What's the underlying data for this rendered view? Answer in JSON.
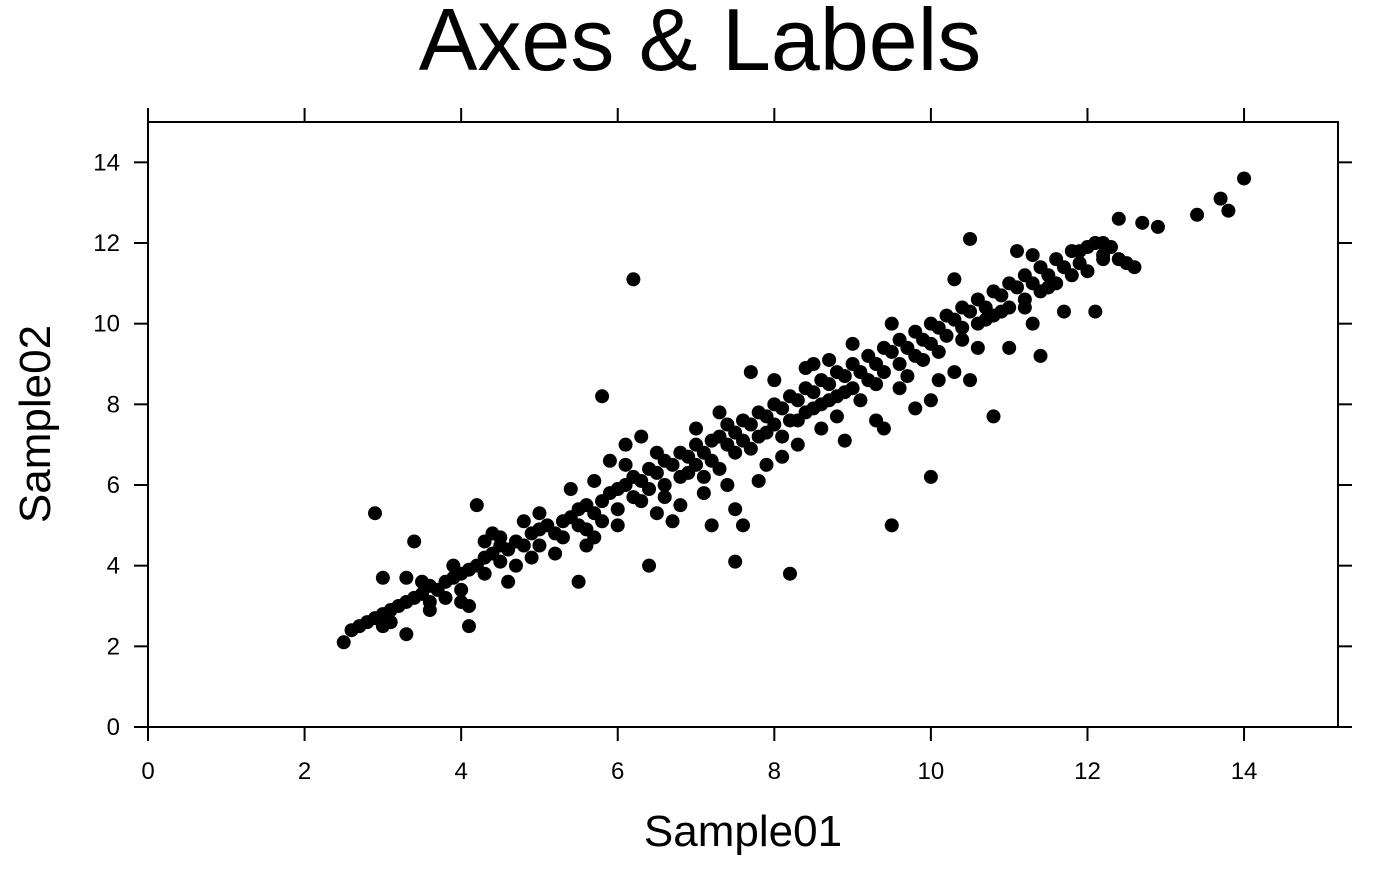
{
  "chart_data": {
    "type": "scatter",
    "title": "Axes & Labels",
    "xlabel": "Sample01",
    "ylabel": "Sample02",
    "xlim": [
      0,
      15.2
    ],
    "ylim": [
      0,
      15
    ],
    "x_ticks": [
      "0",
      "2",
      "4",
      "6",
      "8",
      "10",
      "12",
      "14"
    ],
    "y_ticks": [
      "0",
      "2",
      "4",
      "6",
      "8",
      "10",
      "12",
      "14"
    ],
    "grid": false,
    "legend": "none",
    "marker_color": "#000000",
    "series": [
      {
        "points": [
          [
            2.5,
            2.1
          ],
          [
            2.6,
            2.4
          ],
          [
            2.7,
            2.5
          ],
          [
            2.8,
            2.6
          ],
          [
            2.9,
            2.7
          ],
          [
            3.0,
            2.5
          ],
          [
            3.0,
            2.8
          ],
          [
            3.1,
            2.9
          ],
          [
            3.1,
            2.6
          ],
          [
            3.2,
            3.0
          ],
          [
            3.3,
            3.1
          ],
          [
            3.3,
            2.3
          ],
          [
            3.4,
            3.2
          ],
          [
            3.5,
            3.3
          ],
          [
            3.6,
            3.5
          ],
          [
            3.6,
            3.1
          ],
          [
            3.7,
            3.4
          ],
          [
            3.8,
            3.6
          ],
          [
            3.8,
            3.2
          ],
          [
            3.9,
            3.7
          ],
          [
            4.0,
            3.8
          ],
          [
            4.0,
            3.4
          ],
          [
            4.1,
            3.9
          ],
          [
            4.1,
            3.0
          ],
          [
            4.2,
            4.0
          ],
          [
            4.3,
            4.2
          ],
          [
            4.3,
            3.8
          ],
          [
            4.4,
            4.3
          ],
          [
            4.5,
            4.1
          ],
          [
            4.5,
            4.5
          ],
          [
            4.6,
            4.4
          ],
          [
            4.7,
            4.6
          ],
          [
            4.7,
            4.0
          ],
          [
            4.8,
            4.5
          ],
          [
            4.9,
            4.8
          ],
          [
            4.9,
            4.2
          ],
          [
            5.0,
            4.9
          ],
          [
            5.0,
            4.5
          ],
          [
            5.1,
            5.0
          ],
          [
            5.2,
            4.8
          ],
          [
            5.3,
            5.1
          ],
          [
            5.3,
            4.7
          ],
          [
            5.4,
            5.2
          ],
          [
            5.5,
            5.0
          ],
          [
            5.5,
            5.4
          ],
          [
            5.6,
            5.5
          ],
          [
            5.6,
            4.9
          ],
          [
            5.7,
            5.3
          ],
          [
            5.8,
            5.6
          ],
          [
            5.8,
            5.1
          ],
          [
            5.9,
            5.8
          ],
          [
            6.0,
            5.9
          ],
          [
            6.0,
            5.4
          ],
          [
            6.1,
            6.0
          ],
          [
            6.2,
            5.7
          ],
          [
            6.2,
            6.2
          ],
          [
            6.3,
            6.1
          ],
          [
            6.4,
            5.9
          ],
          [
            6.4,
            6.4
          ],
          [
            6.5,
            6.3
          ],
          [
            6.6,
            6.0
          ],
          [
            6.6,
            6.6
          ],
          [
            6.7,
            6.5
          ],
          [
            6.8,
            6.2
          ],
          [
            6.8,
            6.8
          ],
          [
            6.9,
            6.7
          ],
          [
            7.0,
            6.5
          ],
          [
            7.0,
            7.0
          ],
          [
            7.1,
            6.8
          ],
          [
            7.2,
            7.1
          ],
          [
            7.2,
            6.6
          ],
          [
            7.3,
            7.2
          ],
          [
            7.4,
            7.0
          ],
          [
            7.4,
            7.5
          ],
          [
            7.5,
            7.3
          ],
          [
            7.6,
            7.1
          ],
          [
            7.6,
            7.6
          ],
          [
            7.7,
            7.5
          ],
          [
            7.8,
            7.2
          ],
          [
            7.8,
            7.8
          ],
          [
            7.9,
            7.7
          ],
          [
            8.0,
            7.5
          ],
          [
            8.0,
            8.0
          ],
          [
            8.1,
            7.9
          ],
          [
            8.2,
            7.6
          ],
          [
            8.2,
            8.2
          ],
          [
            8.3,
            8.1
          ],
          [
            8.4,
            7.8
          ],
          [
            8.4,
            8.4
          ],
          [
            8.5,
            8.3
          ],
          [
            8.6,
            8.0
          ],
          [
            8.6,
            8.6
          ],
          [
            8.7,
            8.5
          ],
          [
            8.8,
            8.2
          ],
          [
            8.8,
            8.8
          ],
          [
            8.9,
            8.7
          ],
          [
            9.0,
            8.4
          ],
          [
            9.0,
            9.0
          ],
          [
            9.1,
            8.8
          ],
          [
            9.2,
            8.6
          ],
          [
            9.2,
            9.2
          ],
          [
            9.3,
            9.0
          ],
          [
            9.4,
            8.8
          ],
          [
            9.4,
            9.4
          ],
          [
            9.5,
            9.3
          ],
          [
            9.6,
            9.0
          ],
          [
            9.6,
            9.6
          ],
          [
            9.7,
            9.4
          ],
          [
            9.8,
            9.2
          ],
          [
            9.8,
            9.8
          ],
          [
            9.9,
            9.6
          ],
          [
            10.0,
            9.5
          ],
          [
            10.0,
            10.0
          ],
          [
            10.1,
            9.9
          ],
          [
            10.2,
            9.7
          ],
          [
            10.2,
            10.2
          ],
          [
            10.3,
            10.1
          ],
          [
            10.4,
            9.9
          ],
          [
            10.4,
            10.4
          ],
          [
            10.5,
            10.3
          ],
          [
            10.6,
            10.0
          ],
          [
            10.6,
            10.6
          ],
          [
            10.7,
            10.4
          ],
          [
            10.8,
            10.2
          ],
          [
            10.8,
            10.8
          ],
          [
            10.9,
            10.7
          ],
          [
            11.0,
            10.4
          ],
          [
            11.0,
            11.0
          ],
          [
            11.1,
            10.9
          ],
          [
            11.2,
            10.6
          ],
          [
            11.2,
            11.2
          ],
          [
            11.3,
            11.0
          ],
          [
            11.4,
            10.8
          ],
          [
            11.4,
            11.4
          ],
          [
            11.5,
            11.2
          ],
          [
            11.6,
            11.0
          ],
          [
            11.6,
            11.6
          ],
          [
            11.7,
            11.4
          ],
          [
            11.8,
            11.8
          ],
          [
            11.9,
            11.5
          ],
          [
            12.0,
            11.9
          ],
          [
            12.1,
            12.0
          ],
          [
            12.2,
            11.7
          ],
          [
            12.3,
            11.9
          ],
          [
            12.4,
            11.6
          ],
          [
            12.5,
            11.5
          ],
          [
            12.6,
            11.4
          ],
          [
            12.9,
            12.4
          ],
          [
            13.4,
            12.7
          ],
          [
            13.7,
            13.1
          ],
          [
            13.8,
            12.8
          ],
          [
            14.0,
            13.6
          ],
          [
            12.4,
            12.6
          ],
          [
            12.7,
            12.5
          ],
          [
            12.2,
            11.6
          ],
          [
            11.1,
            11.8
          ],
          [
            11.3,
            11.7
          ],
          [
            10.5,
            12.1
          ],
          [
            10.3,
            11.1
          ],
          [
            12.1,
            10.3
          ],
          [
            11.7,
            10.3
          ],
          [
            11.4,
            9.2
          ],
          [
            11.3,
            10.0
          ],
          [
            10.5,
            8.6
          ],
          [
            10.8,
            7.7
          ],
          [
            10.0,
            8.1
          ],
          [
            10.0,
            6.2
          ],
          [
            9.5,
            5.0
          ],
          [
            8.2,
            3.8
          ],
          [
            7.5,
            4.1
          ],
          [
            6.4,
            4.0
          ],
          [
            5.5,
            3.6
          ],
          [
            4.1,
            2.5
          ],
          [
            3.4,
            4.6
          ],
          [
            2.9,
            5.3
          ],
          [
            6.2,
            11.1
          ],
          [
            5.8,
            8.2
          ],
          [
            7.6,
            5.0
          ],
          [
            7.2,
            5.0
          ],
          [
            6.3,
            7.2
          ],
          [
            7.5,
            5.4
          ],
          [
            6.7,
            5.1
          ],
          [
            6.5,
            5.3
          ],
          [
            7.8,
            6.1
          ],
          [
            8.5,
            9.0
          ],
          [
            8.7,
            9.1
          ],
          [
            9.0,
            9.5
          ],
          [
            9.5,
            10.0
          ],
          [
            8.9,
            7.1
          ],
          [
            9.3,
            7.6
          ],
          [
            9.4,
            7.4
          ],
          [
            9.8,
            7.9
          ],
          [
            10.3,
            8.8
          ],
          [
            11.0,
            9.4
          ],
          [
            3.0,
            3.7
          ],
          [
            3.3,
            3.7
          ],
          [
            4.2,
            5.5
          ],
          [
            4.3,
            4.6
          ],
          [
            4.5,
            4.7
          ],
          [
            5.0,
            5.3
          ],
          [
            4.8,
            5.1
          ],
          [
            5.6,
            4.5
          ],
          [
            5.9,
            6.6
          ],
          [
            6.1,
            7.0
          ],
          [
            6.5,
            6.8
          ],
          [
            7.0,
            7.4
          ],
          [
            7.3,
            7.8
          ],
          [
            7.7,
            8.8
          ],
          [
            8.0,
            8.6
          ],
          [
            8.4,
            8.9
          ],
          [
            5.2,
            4.3
          ],
          [
            4.6,
            3.6
          ],
          [
            4.0,
            3.1
          ],
          [
            3.6,
            2.9
          ],
          [
            3.5,
            3.6
          ],
          [
            3.9,
            4.0
          ],
          [
            4.4,
            4.8
          ],
          [
            5.4,
            5.9
          ],
          [
            5.7,
            6.1
          ],
          [
            6.1,
            6.5
          ],
          [
            6.3,
            5.6
          ],
          [
            6.6,
            5.7
          ],
          [
            6.9,
            6.3
          ],
          [
            7.1,
            6.2
          ],
          [
            7.3,
            6.4
          ],
          [
            7.5,
            6.8
          ],
          [
            7.7,
            6.9
          ],
          [
            7.9,
            7.3
          ],
          [
            8.1,
            7.2
          ],
          [
            8.3,
            7.6
          ],
          [
            8.5,
            7.9
          ],
          [
            8.7,
            8.1
          ],
          [
            8.9,
            8.3
          ],
          [
            9.1,
            8.1
          ],
          [
            9.3,
            8.5
          ],
          [
            9.7,
            8.7
          ],
          [
            9.9,
            9.1
          ],
          [
            10.1,
            9.3
          ],
          [
            10.4,
            9.6
          ],
          [
            10.7,
            10.1
          ],
          [
            10.9,
            10.3
          ],
          [
            11.2,
            10.4
          ],
          [
            11.5,
            10.9
          ],
          [
            11.8,
            11.2
          ],
          [
            12.0,
            11.3
          ],
          [
            12.2,
            12.0
          ],
          [
            11.9,
            11.8
          ],
          [
            10.6,
            9.4
          ],
          [
            10.1,
            8.6
          ],
          [
            9.6,
            8.4
          ],
          [
            8.8,
            7.7
          ],
          [
            8.6,
            7.4
          ],
          [
            8.3,
            7.0
          ],
          [
            8.1,
            6.7
          ],
          [
            7.9,
            6.5
          ],
          [
            7.4,
            6.0
          ],
          [
            7.1,
            5.8
          ],
          [
            6.8,
            5.5
          ],
          [
            6.0,
            5.0
          ],
          [
            5.7,
            4.7
          ]
        ]
      }
    ]
  }
}
